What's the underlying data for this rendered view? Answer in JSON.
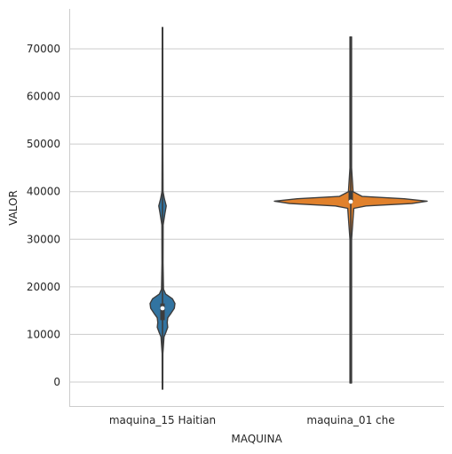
{
  "chart_data": {
    "type": "violin",
    "title": "",
    "xlabel": "MAQUINA",
    "ylabel": "VALOR",
    "categories": [
      "maquina_15 Haitian",
      "maquina_01 che"
    ],
    "ylim": [
      -5000,
      78000
    ],
    "yticks": [
      0,
      10000,
      20000,
      30000,
      40000,
      50000,
      60000,
      70000
    ],
    "ytick_labels": [
      "0",
      "10000",
      "20000",
      "30000",
      "40000",
      "50000",
      "60000",
      "70000"
    ],
    "grid": "horizontal",
    "legend": "none",
    "series": [
      {
        "category": "maquina_15 Haitian",
        "color": "#3274a1",
        "min": -1500,
        "max": 74500,
        "q1": 13000,
        "median": 15500,
        "q3": 16500,
        "density_profile": [
          [
            -1500,
            0.02
          ],
          [
            6000,
            0.03
          ],
          [
            9500,
            0.12
          ],
          [
            10500,
            0.28
          ],
          [
            11500,
            0.42
          ],
          [
            12500,
            0.38
          ],
          [
            13500,
            0.42
          ],
          [
            14500,
            0.7
          ],
          [
            15500,
            0.95
          ],
          [
            16500,
            1.0
          ],
          [
            17500,
            0.8
          ],
          [
            18500,
            0.25
          ],
          [
            19500,
            0.08
          ],
          [
            25000,
            0.04
          ],
          [
            33000,
            0.05
          ],
          [
            35500,
            0.2
          ],
          [
            37000,
            0.3
          ],
          [
            38500,
            0.15
          ],
          [
            40000,
            0.04
          ],
          [
            50000,
            0.03
          ],
          [
            74500,
            0.02
          ]
        ]
      },
      {
        "category": "maquina_01 che",
        "color": "#e1812c",
        "min": -200,
        "max": 72500,
        "q1": 37800,
        "median": 37900,
        "q3": 40200,
        "density_profile": [
          [
            -200,
            0.01
          ],
          [
            30000,
            0.01
          ],
          [
            36500,
            0.04
          ],
          [
            37000,
            0.2
          ],
          [
            37500,
            0.8
          ],
          [
            38000,
            1.0
          ],
          [
            38500,
            0.7
          ],
          [
            39000,
            0.15
          ],
          [
            40000,
            0.03
          ],
          [
            45000,
            0.01
          ],
          [
            72500,
            0.01
          ]
        ]
      }
    ]
  }
}
